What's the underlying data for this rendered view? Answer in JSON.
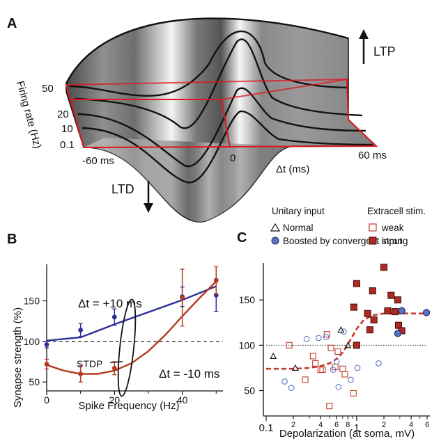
{
  "panels": {
    "a": {
      "label": "A",
      "ylabel": "Firing rate (Hz)",
      "xlabel": "Δt (ms)",
      "rate_ticks": [
        "50",
        "20",
        "10",
        "0.1"
      ],
      "x_ticks": [
        "-60 ms",
        "0",
        "60 ms"
      ],
      "ltp": "LTP",
      "ltd": "LTD",
      "colors": {
        "surface_dark": "#3a3a3a",
        "surface_light": "#f2f2f2",
        "frame": "#e0151b"
      }
    },
    "b": {
      "label": "B",
      "ylabel": "Synapse strength (%)",
      "xlabel": "Spike Frequency (Hz)",
      "x_ticks": [
        "0",
        "20",
        "40"
      ],
      "y_ticks": [
        "50",
        "100",
        "150"
      ],
      "stdp_label": "STDP",
      "series_labels": [
        "Δt = +10 ms",
        "Δt = -10 ms"
      ],
      "colors": {
        "blue": "#2e2e9a",
        "red": "#b53a1e"
      }
    },
    "c": {
      "label": "C",
      "ylabel": "",
      "xlabel": "Depolarization (at soma, mV)",
      "x_ticks": [
        "0.1",
        "2",
        "4",
        "6",
        "8",
        "1",
        "2",
        "4",
        "6"
      ],
      "y_ticks": [
        "50",
        "100",
        "150"
      ],
      "legend": {
        "unitary_title": "Unitary input",
        "normal": "Normal",
        "boosted": "Boosted by convergent input",
        "extracell_title": "Extracell stim.",
        "weak": "weak",
        "strong": "strong"
      },
      "colors": {
        "blue": "#5b73c2",
        "red": "#c43a2a",
        "fit": "#c43a2a"
      }
    }
  },
  "chart_data": [
    {
      "type": "line",
      "panel": "A",
      "rates_hz": [
        0.1,
        10,
        20,
        50
      ],
      "x_range_ms": [
        -60,
        60
      ],
      "xlabel": "Δt (ms)",
      "ylabel": "Firing rate (Hz)"
    },
    {
      "type": "line",
      "panel": "B",
      "xlabel": "Spike Frequency (Hz)",
      "ylabel": "Synapse strength (%)",
      "xlim": [
        0,
        52
      ],
      "ylim": [
        45,
        195
      ],
      "baseline": 100,
      "series": [
        {
          "name": "Δt = +10 ms",
          "x": [
            0,
            10,
            20,
            40,
            50
          ],
          "y": [
            96,
            114,
            130,
            155,
            157
          ],
          "err": [
            4,
            8,
            10,
            12,
            20
          ],
          "fit_x": [
            0,
            10,
            20,
            30,
            40,
            50
          ],
          "fit_y": [
            101,
            105,
            121,
            136,
            151,
            168
          ]
        },
        {
          "name": "Δt = -10 ms",
          "x": [
            0,
            10,
            20,
            40,
            50
          ],
          "y": [
            72,
            60,
            67,
            154,
            175
          ],
          "err": [
            6,
            10,
            8,
            35,
            17
          ],
          "fit_x": [
            0,
            5,
            10,
            15,
            20,
            25,
            30,
            35,
            40,
            45,
            50
          ],
          "fit_y": [
            71,
            64,
            60,
            60,
            64,
            73,
            88,
            108,
            131,
            153,
            174
          ]
        }
      ]
    },
    {
      "type": "scatter",
      "panel": "C",
      "xlabel": "Depolarization (at soma, mV)",
      "x_scale": "log",
      "xlim": [
        0.1,
        6
      ],
      "ylim": [
        22,
        200
      ],
      "baseline": 100,
      "series": [
        {
          "name": "Normal",
          "x": [
            0.12,
            0.21,
            0.67,
            0.8
          ],
          "y": [
            88,
            75,
            117,
            100
          ]
        },
        {
          "name": "Boosted by convergent input",
          "x": [
            0.16,
            0.19,
            0.28,
            0.38,
            0.46,
            0.55,
            0.63,
            0.72,
            0.86,
            0.6,
            1.02,
            1.75,
            3.15,
            5.9,
            2.85
          ],
          "y": [
            60,
            53,
            107,
            108,
            109,
            73,
            54,
            115,
            62,
            82,
            75,
            80,
            138,
            136,
            113
          ]
        },
        {
          "name": "weak",
          "x": [
            0.18,
            0.27,
            0.35,
            0.4,
            0.47,
            0.52,
            0.58,
            0.62,
            0.7,
            0.74,
            0.5,
            0.42,
            0.92,
            0.33
          ],
          "y": [
            100,
            62,
            80,
            73,
            112,
            97,
            76,
            93,
            74,
            68,
            33,
            73,
            47,
            88
          ]
        },
        {
          "name": "strong",
          "x": [
            0.93,
            1.0,
            1.0,
            1.32,
            1.4,
            1.5,
            2.0,
            2.2,
            2.4,
            2.65,
            2.9,
            3.15,
            1.55,
            2.85
          ],
          "y": [
            142,
            168,
            100,
            135,
            117,
            160,
            186,
            138,
            155,
            137,
            122,
            116,
            128,
            150
          ]
        }
      ],
      "fit": {
        "name": "sigmoid",
        "x": [
          0.1,
          0.2,
          0.3,
          0.4,
          0.5,
          0.6,
          0.7,
          0.8,
          0.9,
          1.0,
          1.2,
          1.5,
          2,
          3,
          4,
          6
        ],
        "y": [
          74,
          74,
          75,
          77,
          80,
          85,
          92,
          101,
          110,
          118,
          128,
          133,
          135,
          135,
          135,
          135
        ]
      }
    }
  ]
}
